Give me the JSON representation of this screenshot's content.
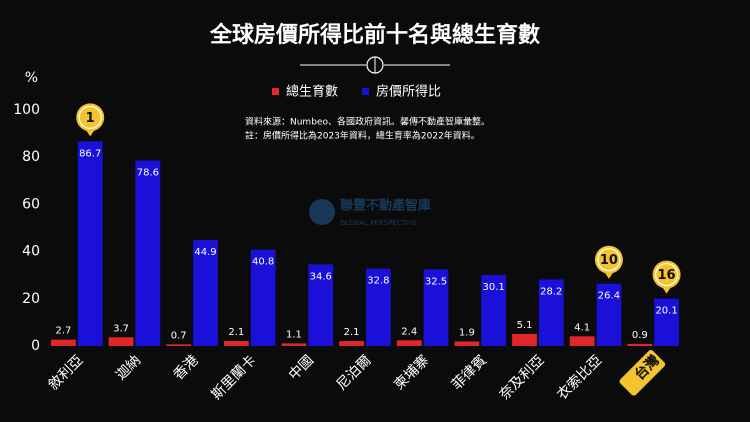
{
  "chart_data": {
    "type": "bar",
    "title": "全球房價所得比前十名與總生育數",
    "y_unit": "%",
    "source_lines": [
      "資料來源：Numbeo、各國政府資訊。馨傳不動產智庫彙整。",
      "註：房價所得比為2023年資料，總生育率為2022年資料。"
    ],
    "watermark": [
      "聯豐不動產智庫",
      "GLOBAL PERSPECTIVE"
    ],
    "categories": [
      "敘利亞",
      "迦納",
      "香港",
      "斯里蘭卡",
      "中國",
      "尼泊爾",
      "柬埔寨",
      "菲律賓",
      "奈及利亞",
      "衣索比亞",
      "台灣"
    ],
    "series": [
      {
        "name": "總生育數",
        "color": "#e0282a",
        "values": [
          2.7,
          3.7,
          0.7,
          2.1,
          1.1,
          2.1,
          2.4,
          1.9,
          5.1,
          4.1,
          0.9
        ]
      },
      {
        "name": "房價所得比",
        "color": "#1a10d8",
        "values": [
          86.7,
          78.6,
          44.9,
          40.8,
          34.6,
          32.8,
          32.5,
          30.1,
          28.2,
          26.4,
          20.1
        ]
      }
    ],
    "rank_badges": [
      "1",
      null,
      null,
      null,
      null,
      null,
      null,
      null,
      null,
      "10",
      "16"
    ],
    "highlighted": [
      false,
      false,
      false,
      false,
      false,
      false,
      false,
      false,
      false,
      false,
      true
    ],
    "ylim": [
      0,
      100
    ],
    "yticks": [
      0,
      20,
      40,
      60,
      80,
      100
    ],
    "grid": false
  }
}
